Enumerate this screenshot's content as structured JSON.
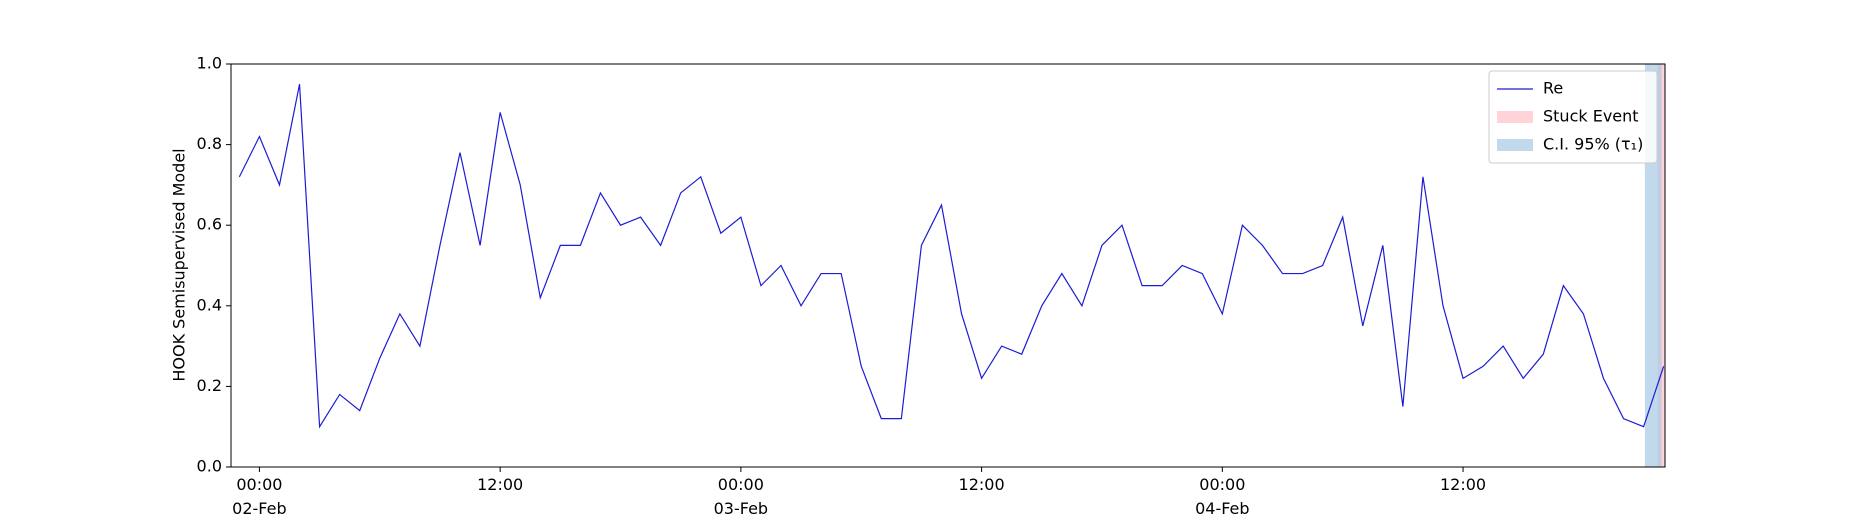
{
  "chart_data": {
    "type": "line",
    "ylabel": "HOOK Semisupervised Model",
    "x": [
      "1900-02-01 23:00",
      "1900-02-02 00:00",
      "1900-02-02 01:00",
      "1900-02-02 02:00",
      "1900-02-02 03:00",
      "1900-02-02 04:00",
      "1900-02-02 05:00",
      "1900-02-02 06:00",
      "1900-02-02 07:00",
      "1900-02-02 08:00",
      "1900-02-02 09:00",
      "1900-02-02 10:00",
      "1900-02-02 11:00",
      "1900-02-02 12:00",
      "1900-02-02 13:00",
      "1900-02-02 14:00",
      "1900-02-02 15:00",
      "1900-02-02 16:00",
      "1900-02-02 17:00",
      "1900-02-02 18:00",
      "1900-02-02 19:00",
      "1900-02-02 20:00",
      "1900-02-02 21:00",
      "1900-02-02 22:00",
      "1900-02-02 23:00",
      "1900-02-03 00:00",
      "1900-02-03 01:00",
      "1900-02-03 02:00",
      "1900-02-03 03:00",
      "1900-02-03 04:00",
      "1900-02-03 05:00",
      "1900-02-03 06:00",
      "1900-02-03 07:00",
      "1900-02-03 08:00",
      "1900-02-03 09:00",
      "1900-02-03 10:00",
      "1900-02-03 11:00",
      "1900-02-03 12:00",
      "1900-02-03 13:00",
      "1900-02-03 14:00",
      "1900-02-03 15:00",
      "1900-02-03 16:00",
      "1900-02-03 17:00",
      "1900-02-03 18:00",
      "1900-02-03 19:00",
      "1900-02-03 20:00",
      "1900-02-03 21:00",
      "1900-02-03 22:00",
      "1900-02-03 23:00",
      "1900-02-04 00:00",
      "1900-02-04 01:00",
      "1900-02-04 02:00",
      "1900-02-04 03:00",
      "1900-02-04 04:00",
      "1900-02-04 05:00",
      "1900-02-04 06:00",
      "1900-02-04 07:00",
      "1900-02-04 08:00",
      "1900-02-04 09:00",
      "1900-02-04 10:00",
      "1900-02-04 11:00",
      "1900-02-04 12:00",
      "1900-02-04 13:00",
      "1900-02-04 14:00",
      "1900-02-04 15:00",
      "1900-02-04 16:00",
      "1900-02-04 17:00",
      "1900-02-04 18:00",
      "1900-02-04 19:00",
      "1900-02-04 20:00",
      "1900-02-04 21:00",
      "1900-02-04 22:00"
    ],
    "series": [
      {
        "name": "Re",
        "color": "#1c1cd4",
        "values": [
          0.72,
          0.82,
          0.7,
          0.95,
          0.1,
          0.18,
          0.14,
          0.27,
          0.38,
          0.3,
          0.55,
          0.78,
          0.55,
          0.88,
          0.7,
          0.42,
          0.55,
          0.55,
          0.68,
          0.6,
          0.62,
          0.55,
          0.68,
          0.72,
          0.58,
          0.62,
          0.45,
          0.5,
          0.4,
          0.48,
          0.48,
          0.25,
          0.12,
          0.12,
          0.55,
          0.65,
          0.38,
          0.22,
          0.3,
          0.28,
          0.4,
          0.48,
          0.4,
          0.55,
          0.6,
          0.45,
          0.45,
          0.5,
          0.48,
          0.38,
          0.6,
          0.55,
          0.48,
          0.48,
          0.5,
          0.62,
          0.35,
          0.55,
          0.15,
          0.72,
          0.4,
          0.22,
          0.25,
          0.3,
          0.22,
          0.28,
          0.45,
          0.38,
          0.22,
          0.12,
          0.1,
          0.25
        ]
      }
    ],
    "spans": [
      {
        "name": "Stuck Event",
        "color": "#ffc0c8",
        "x": [
          "1900-02-04 21:42",
          "1900-02-04 22:04"
        ]
      },
      {
        "name": "C.I. 95% (τ₁)",
        "color": "#a8c8e4",
        "x": [
          "1900-02-04 21:04",
          "1900-02-04 21:54"
        ]
      }
    ],
    "xlim": [
      "1900-02-01 22:35",
      "1900-02-04 22:04"
    ],
    "xticks": [
      {
        "value": "1900-02-02 00:00",
        "label": "00:00\n02-Feb\n1900"
      },
      {
        "value": "1900-02-02 12:00",
        "label": "12:00"
      },
      {
        "value": "1900-02-03 00:00",
        "label": "00:00\n03-Feb"
      },
      {
        "value": "1900-02-03 12:00",
        "label": "12:00"
      },
      {
        "value": "1900-02-04 00:00",
        "label": "00:00\n04-Feb"
      },
      {
        "value": "1900-02-04 12:00",
        "label": "12:00"
      }
    ],
    "ylim": [
      0,
      1
    ],
    "yticks": [
      {
        "value": 0,
        "label": "0.0"
      },
      0.2,
      0.4,
      0.6,
      0.8,
      {
        "value": 1,
        "label": "1.0"
      }
    ],
    "legend": "upper right"
  }
}
